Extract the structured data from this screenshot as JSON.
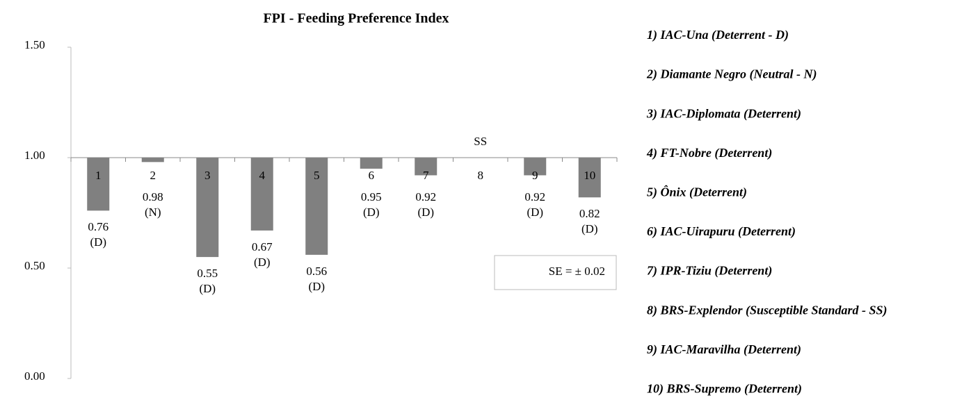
{
  "chart_data": {
    "type": "bar",
    "title": "FPI - Feeding Preference Index",
    "categories": [
      "1",
      "2",
      "3",
      "4",
      "5",
      "6",
      "7",
      "8",
      "9",
      "10"
    ],
    "values": [
      0.76,
      0.98,
      0.55,
      0.67,
      0.56,
      0.95,
      0.92,
      1.0,
      0.92,
      0.82
    ],
    "value_labels": [
      "0.76",
      "0.98",
      "0.55",
      "0.67",
      "0.56",
      "0.95",
      "0.92",
      null,
      "0.92",
      "0.82"
    ],
    "classes": [
      "(D)",
      "(N)",
      "(D)",
      "(D)",
      "(D)",
      "(D)",
      "(D)",
      null,
      "(D)",
      "(D)"
    ],
    "category_annotations": [
      null,
      null,
      null,
      null,
      null,
      null,
      null,
      "SS",
      null,
      null
    ],
    "color": "#808080",
    "bar_base": 1.0,
    "ylim": [
      0,
      1.5
    ],
    "yticks": [
      {
        "value": 0,
        "label": "0.00"
      },
      {
        "value": 0.5,
        "label": "0.50"
      },
      {
        "value": 1.0,
        "label": "1.00"
      },
      {
        "value": 1.5,
        "label": "1.50"
      }
    ],
    "annotation": "SE = ± 0.02",
    "legend_items": [
      "1) IAC-Una  (Deterrent - D)",
      "2) Diamante Negro (Neutral - N)",
      "3) IAC-Diplomata (Deterrent)",
      "4) FT-Nobre (Deterrent)",
      "5) Ônix (Deterrent)",
      "6) IAC-Uirapuru (Deterrent)",
      "7) IPR-Tiziu (Deterrent)",
      "8) BRS-Explendor (Susceptible Standard - SS)",
      "9) IAC-Maravilha (Deterrent)",
      "10) BRS-Supremo  (Deterrent)"
    ]
  }
}
